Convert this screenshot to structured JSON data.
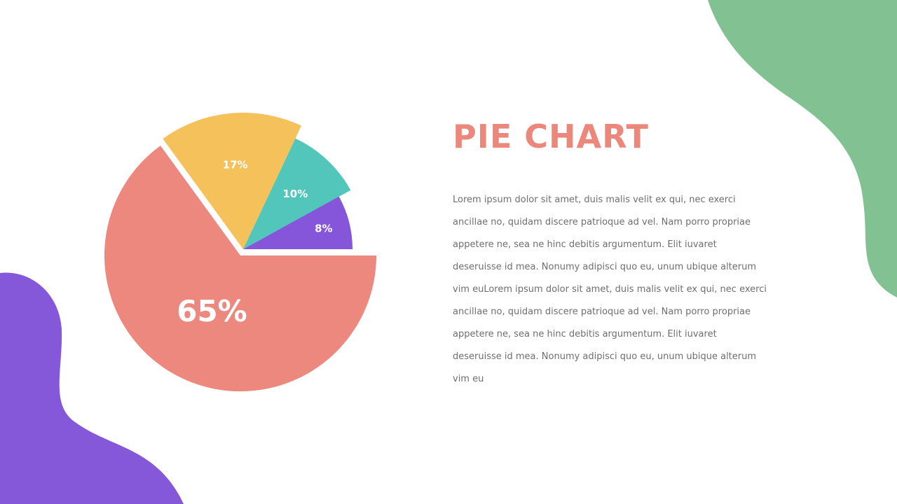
{
  "slide": {
    "title": "PIE CHART",
    "body": "Lorem ipsum dolor sit amet, duis malis velit ex qui, nec exerci ancillae no, quidam discere patrioque ad vel. Nam porro propriae appetere ne, sea ne hinc debitis argumentum. Elit iuvaret deseruisse id mea. Nonumy adipisci quo eu, unum ubique alterum vim euLorem ipsum dolor sit amet, duis malis velit ex qui, nec exerci ancillae no, quidam discere patrioque ad vel. Nam porro propriae appetere ne, sea ne hinc debitis argumentum. Elit iuvaret deseruisse id mea. Nonumy adipisci quo eu, unum ubique alterum vim eu"
  },
  "colors": {
    "title": "#EC877C",
    "green_blob": "#82C292",
    "purple_blob": "#8458D8"
  },
  "chart_data": {
    "type": "pie",
    "title": "",
    "slices": [
      {
        "label": "65%",
        "value": 65,
        "color": "#EC887E"
      },
      {
        "label": "17%",
        "value": 17,
        "color": "#F4C15A"
      },
      {
        "label": "10%",
        "value": 10,
        "color": "#52C6BB"
      },
      {
        "label": "8%",
        "value": 8,
        "color": "#8556DA"
      }
    ],
    "exploded": true,
    "legend": "none"
  }
}
